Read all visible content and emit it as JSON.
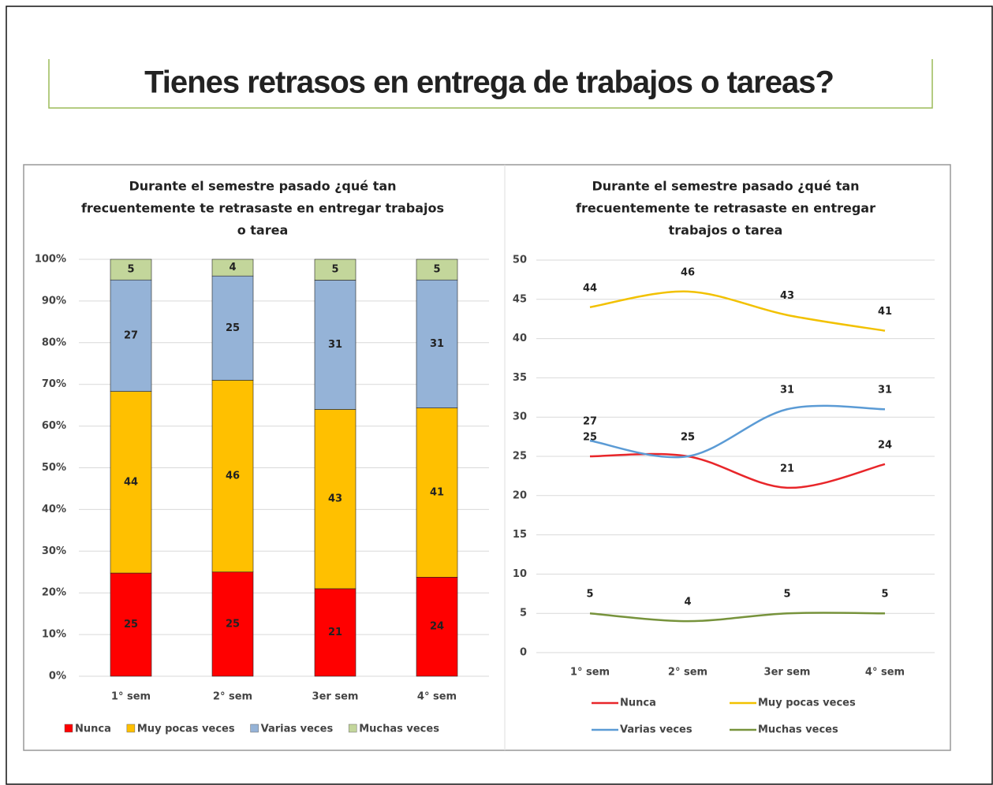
{
  "title": "Tienes retrasos en entrega de trabajos o tareas?",
  "chart_data": [
    {
      "type": "stacked_percent_bar",
      "title": [
        "Durante el semestre pasado ¿qué tan",
        "frecuentemente te retrasaste en entregar trabajos",
        "o tarea"
      ],
      "categories": [
        "1° sem",
        "2° sem",
        "3er sem",
        "4° sem"
      ],
      "series": [
        {
          "name": "Nunca",
          "color": "#ff0000",
          "values": [
            25,
            25,
            21,
            24
          ]
        },
        {
          "name": "Muy pocas veces",
          "color": "#ffc000",
          "values": [
            44,
            46,
            43,
            41
          ]
        },
        {
          "name": "Varias veces",
          "color": "#95b3d7",
          "values": [
            27,
            25,
            31,
            31
          ]
        },
        {
          "name": "Muchas veces",
          "color": "#c3d69b",
          "values": [
            5,
            4,
            5,
            5
          ]
        }
      ],
      "ylim": [
        0,
        100
      ],
      "yticks": [
        {
          "value": 0,
          "label": "0%"
        },
        {
          "value": 10,
          "label": "10%"
        },
        {
          "value": 20,
          "label": "20%"
        },
        {
          "value": 30,
          "label": "30%"
        },
        {
          "value": 40,
          "label": "40%"
        },
        {
          "value": 50,
          "label": "50%"
        },
        {
          "value": 60,
          "label": "60%"
        },
        {
          "value": 70,
          "label": "70%"
        },
        {
          "value": 80,
          "label": "80%"
        },
        {
          "value": 90,
          "label": "90%"
        },
        {
          "value": 100,
          "label": "100%"
        }
      ],
      "grid": true,
      "legend": "bottom"
    },
    {
      "type": "line",
      "title": [
        "Durante el semestre pasado ¿qué tan",
        "frecuentemente te retrasaste en entregar",
        "trabajos o tarea"
      ],
      "categories": [
        "1° sem",
        "2° sem",
        "3er sem",
        "4° sem"
      ],
      "series": [
        {
          "name": "Nunca",
          "color": "#e8262a",
          "values": [
            25,
            25,
            21,
            24
          ]
        },
        {
          "name": "Muy pocas veces",
          "color": "#f2c100",
          "values": [
            44,
            46,
            43,
            41
          ]
        },
        {
          "name": "Varias veces",
          "color": "#5b9bd5",
          "values": [
            27,
            25,
            31,
            31
          ]
        },
        {
          "name": "Muchas veces",
          "color": "#77933c",
          "values": [
            5,
            4,
            5,
            5
          ]
        }
      ],
      "ylim": [
        0,
        50
      ],
      "yticks": [
        0,
        5,
        10,
        15,
        20,
        25,
        30,
        35,
        40,
        45,
        50
      ],
      "grid": true,
      "legend": "bottom"
    }
  ]
}
